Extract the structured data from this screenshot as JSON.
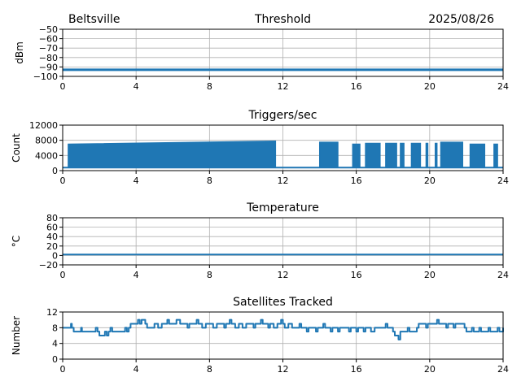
{
  "header": {
    "location": "Beltsville",
    "date": "2025/08/26"
  },
  "colors": {
    "series": "#1f77b4",
    "grid": "#b0b0b0",
    "axes": "#000000"
  },
  "chart_data": [
    {
      "type": "line",
      "title": "Threshold",
      "xlabel": "",
      "ylabel": "dBm",
      "xlim": [
        0,
        24
      ],
      "ylim": [
        -100,
        -50
      ],
      "xticks": [
        0,
        4,
        8,
        12,
        16,
        20,
        24
      ],
      "yticks": [
        -50,
        -60,
        -70,
        -80,
        -90,
        -100
      ],
      "ytick_labels": [
        "−50",
        "−60",
        "−70",
        "−80",
        "−90",
        "−100"
      ],
      "grid": true,
      "series": [
        {
          "x": [
            0,
            2,
            4,
            6,
            8,
            10,
            12,
            14,
            16,
            18,
            20,
            22,
            24
          ],
          "values": [
            -93,
            -93,
            -93,
            -93,
            -93,
            -93,
            -93,
            -93,
            -93,
            -93,
            -93,
            -93,
            -93
          ]
        }
      ]
    },
    {
      "type": "line",
      "title": "Triggers/sec",
      "xlabel": "",
      "ylabel": "Count",
      "xlim": [
        0,
        24
      ],
      "ylim": [
        0,
        12000
      ],
      "xticks": [
        0,
        4,
        8,
        12,
        16,
        20,
        24
      ],
      "yticks": [
        0,
        4000,
        8000,
        12000
      ],
      "ytick_labels": [
        "0",
        "4000",
        "8000",
        "12000"
      ],
      "grid": true,
      "baseline": 800,
      "bursts": [
        {
          "start": 0.3,
          "end": 11.6,
          "peak_start": 7000,
          "peak_end": 7800
        },
        {
          "start": 14.0,
          "end": 15.0,
          "peak_start": 7500,
          "peak_end": 7500
        },
        {
          "start": 15.8,
          "end": 16.2,
          "peak_start": 7000,
          "peak_end": 7000
        },
        {
          "start": 16.5,
          "end": 17.3,
          "peak_start": 7200,
          "peak_end": 7200
        },
        {
          "start": 17.6,
          "end": 18.2,
          "peak_start": 7200,
          "peak_end": 7200
        },
        {
          "start": 18.4,
          "end": 18.6,
          "peak_start": 7200,
          "peak_end": 7200
        },
        {
          "start": 19.0,
          "end": 19.5,
          "peak_start": 7200,
          "peak_end": 7200
        },
        {
          "start": 19.8,
          "end": 19.9,
          "peak_start": 7200,
          "peak_end": 7200
        },
        {
          "start": 20.3,
          "end": 20.4,
          "peak_start": 7200,
          "peak_end": 7200
        },
        {
          "start": 20.6,
          "end": 21.8,
          "peak_start": 7500,
          "peak_end": 7500
        },
        {
          "start": 22.2,
          "end": 23.0,
          "peak_start": 7000,
          "peak_end": 7000
        },
        {
          "start": 23.5,
          "end": 23.7,
          "peak_start": 7000,
          "peak_end": 7000
        }
      ]
    },
    {
      "type": "line",
      "title": "Temperature",
      "xlabel": "",
      "ylabel": "°C",
      "xlim": [
        0,
        24
      ],
      "ylim": [
        -20,
        80
      ],
      "xticks": [
        0,
        4,
        8,
        12,
        16,
        20,
        24
      ],
      "yticks": [
        80,
        60,
        40,
        20,
        0,
        -20
      ],
      "ytick_labels": [
        "80",
        "60",
        "40",
        "20",
        "0",
        "−20"
      ],
      "grid": true,
      "series": [
        {
          "x": [
            0,
            4,
            8,
            12,
            16,
            20,
            24
          ],
          "values": [
            2,
            2,
            2,
            2,
            2,
            2,
            2
          ]
        }
      ]
    },
    {
      "type": "line",
      "title": "Satellites Tracked",
      "xlabel": "",
      "ylabel": "Number",
      "xlim": [
        0,
        24
      ],
      "ylim": [
        0,
        12
      ],
      "xticks": [
        0,
        4,
        8,
        12,
        16,
        20,
        24
      ],
      "yticks": [
        12,
        8,
        4,
        0
      ],
      "ytick_labels": [
        "12",
        "8",
        "4",
        "0"
      ],
      "grid": true,
      "series": [
        {
          "x": [
            0,
            0.45,
            0.5,
            0.6,
            1.0,
            1.05,
            1.8,
            1.9,
            2.0,
            2.3,
            2.4,
            2.5,
            2.6,
            2.7,
            3.4,
            3.5,
            3.6,
            3.7,
            4.1,
            4.2,
            4.3,
            4.5,
            4.6,
            5.0,
            5.2,
            5.4,
            5.7,
            5.8,
            6.2,
            6.4,
            6.8,
            6.9,
            7.3,
            7.4,
            7.6,
            7.8,
            8.2,
            8.4,
            8.8,
            8.9,
            9.1,
            9.2,
            9.4,
            9.6,
            9.8,
            10.0,
            10.4,
            10.5,
            10.8,
            10.9,
            11.2,
            11.3,
            11.5,
            11.7,
            11.9,
            12.0,
            12.1,
            12.3,
            12.5,
            12.9,
            13.0,
            13.3,
            13.4,
            13.8,
            13.9,
            14.2,
            14.3,
            14.6,
            14.7,
            15.0,
            15.1,
            15.6,
            15.7,
            16.0,
            16.1,
            16.4,
            16.5,
            16.8,
            17.0,
            17.6,
            17.7,
            18.0,
            18.1,
            18.3,
            18.4,
            18.8,
            18.9,
            19.3,
            19.4,
            19.8,
            19.9,
            20.4,
            20.5,
            20.9,
            21.0,
            21.3,
            21.4,
            21.9,
            22.0,
            22.3,
            22.4,
            22.7,
            22.8,
            23.2,
            23.3,
            23.7,
            23.8,
            24.0
          ],
          "values": [
            8,
            9,
            8,
            7,
            8,
            7,
            8,
            7,
            6,
            7,
            6,
            7,
            8,
            7,
            8,
            7,
            8,
            9,
            10,
            9,
            10,
            9,
            8,
            9,
            8,
            9,
            10,
            9,
            10,
            9,
            8,
            9,
            10,
            9,
            8,
            9,
            8,
            9,
            8,
            9,
            10,
            9,
            8,
            9,
            8,
            9,
            8,
            9,
            10,
            9,
            8,
            9,
            8,
            9,
            10,
            9,
            8,
            9,
            8,
            9,
            8,
            7,
            8,
            7,
            8,
            9,
            8,
            7,
            8,
            7,
            8,
            7,
            8,
            7,
            8,
            7,
            8,
            7,
            8,
            9,
            8,
            7,
            6,
            5,
            7,
            8,
            7,
            8,
            9,
            8,
            9,
            10,
            9,
            8,
            9,
            8,
            9,
            8,
            7,
            8,
            7,
            8,
            7,
            8,
            7,
            8,
            7,
            8
          ]
        }
      ]
    }
  ]
}
